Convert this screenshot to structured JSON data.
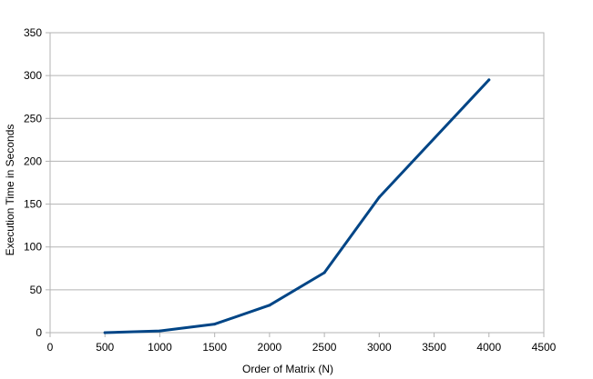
{
  "chart_data": {
    "type": "line",
    "title": "",
    "xlabel": "Order of Matrix (N)",
    "ylabel": "Execution Time in Seconds",
    "xlim": [
      0,
      4500
    ],
    "ylim": [
      0,
      350
    ],
    "xticks": [
      0,
      500,
      1000,
      1500,
      2000,
      2500,
      3000,
      3500,
      4000,
      4500
    ],
    "yticks": [
      0,
      50,
      100,
      150,
      200,
      250,
      300,
      350
    ],
    "grid": "horizontal",
    "legend": "none",
    "series": [
      {
        "color": "#004586",
        "x": [
          500,
          1000,
          1500,
          2000,
          2500,
          3000,
          4000
        ],
        "y": [
          0,
          2,
          10,
          32,
          70,
          158,
          295
        ]
      }
    ]
  }
}
